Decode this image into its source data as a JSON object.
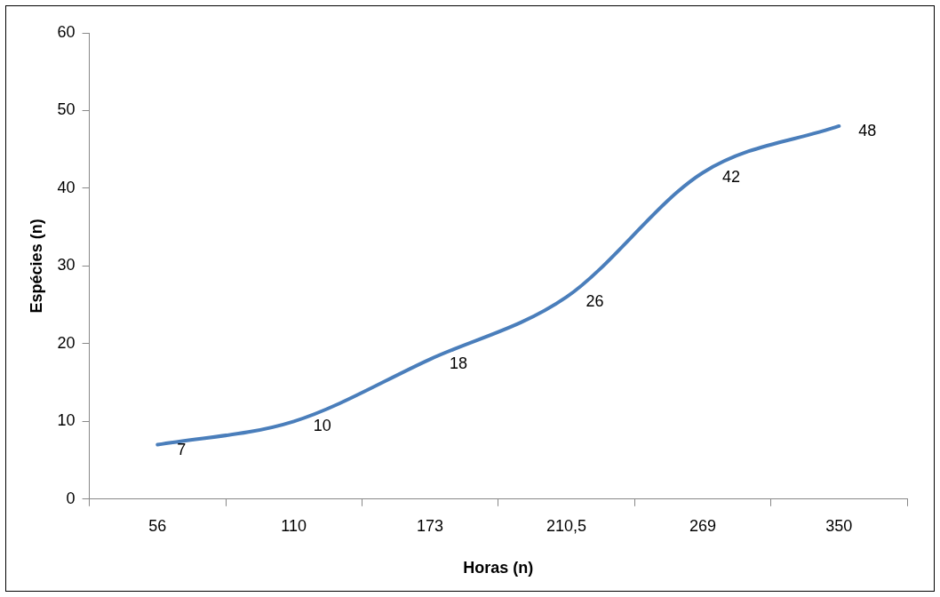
{
  "chart_data": {
    "type": "line",
    "xlabel": "Horas (n)",
    "ylabel": "Espécies (n)",
    "categories": [
      "56",
      "110",
      "173",
      "210,5",
      "269",
      "350"
    ],
    "series": [
      {
        "color": "#4a7ebb",
        "values": [
          7,
          10,
          18,
          26,
          42,
          48
        ]
      }
    ],
    "ylim": [
      0,
      60
    ],
    "yticks": [
      0,
      10,
      20,
      30,
      40,
      50,
      60
    ],
    "grid": false,
    "legend": false,
    "marker": "none",
    "data_labels": true
  }
}
